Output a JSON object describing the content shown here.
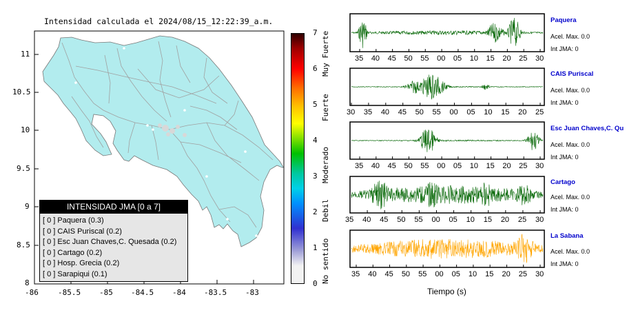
{
  "map": {
    "title": "Intensidad calculada el 2024/08/15_12:22:39_a.m.",
    "x_ticks": [
      "-86",
      "-85.5",
      "-85",
      "-84.5",
      "-84",
      "-83.5",
      "-83"
    ],
    "y_ticks": [
      "11",
      "10.5",
      "10",
      "9.5",
      "9",
      "8.5",
      "8"
    ],
    "land_color": "#b2ecee",
    "road_color": "#a0a0a0"
  },
  "legend": {
    "title": "INTENSIDAD JMA [0 a 7]",
    "rows": [
      "[ 0 ]  Paquera (0.3)",
      "[ 0 ]  CAIS Puriscal (0.2)",
      "[ 0 ]  Esc Juan Chaves,C. Quesada (0.2)",
      "[ 0 ]  Cartago (0.2)",
      "[ 0 ]  Hosp. Grecia (0.2)",
      "[ 0 ]  Sarapiqui (0.1)"
    ]
  },
  "colorbar": {
    "ticks": [
      "0",
      "1",
      "2",
      "3",
      "4",
      "5",
      "6",
      "7"
    ],
    "categories": [
      "No sentido",
      "Debil",
      "Moderado",
      "Fuerte",
      "Muy Fuerte"
    ]
  },
  "waveforms": {
    "xlabel": "Tiempo (s)",
    "panels": [
      {
        "station": "Paquera",
        "acel": "Acel. Max. 0.0",
        "int": "Int JMA: 0",
        "color": "#006400",
        "ticks": [
          "35",
          "40",
          "45",
          "50",
          "55",
          "00",
          "05",
          "10",
          "15",
          "20",
          "25",
          "30"
        ]
      },
      {
        "station": "CAIS Puriscal",
        "acel": "Acel. Max. 0.0",
        "int": "Int JMA: 0",
        "color": "#006400",
        "ticks": [
          "30",
          "35",
          "40",
          "45",
          "50",
          "55",
          "00",
          "05",
          "10",
          "15",
          "20",
          "25"
        ]
      },
      {
        "station": "Esc Juan Chaves,C. Qu",
        "acel": "Acel. Max. 0.0",
        "int": "Int JMA: 0",
        "color": "#006400",
        "ticks": [
          "35",
          "40",
          "45",
          "50",
          "55",
          "00",
          "05",
          "10",
          "15",
          "20",
          "25",
          "30"
        ]
      },
      {
        "station": "Cartago",
        "acel": "Acel. Max. 0.0",
        "int": "Int JMA: 0",
        "color": "#006400",
        "ticks": [
          "35",
          "40",
          "45",
          "50",
          "55",
          "00",
          "05",
          "10",
          "15",
          "20",
          "25",
          "30"
        ]
      },
      {
        "station": "La Sabana",
        "acel": "Acel. Max. 0.0",
        "int": "Int JMA: 0",
        "color": "#ffa500",
        "ticks": [
          "35",
          "40",
          "45",
          "50",
          "55",
          "00",
          "05",
          "10",
          "15",
          "20",
          "25",
          "30"
        ]
      }
    ]
  }
}
